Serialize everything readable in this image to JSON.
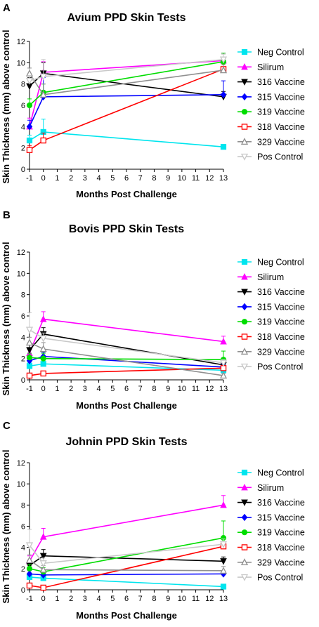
{
  "chart_data": [
    {
      "panel": "A",
      "type": "line",
      "title": "Avium PPD Skin Tests",
      "xlabel": "Months Post Challenge",
      "ylabel": "Skin Thickness (mm) above control",
      "x": [
        -1,
        0,
        13
      ],
      "xticks": [
        "-1",
        "0",
        "1",
        "2",
        "3",
        "4",
        "5",
        "6",
        "7",
        "8",
        "9",
        "10",
        "11",
        "12",
        "13"
      ],
      "yticks": [
        "0",
        "2",
        "4",
        "6",
        "8",
        "10",
        "12"
      ],
      "xlim": [
        -1,
        13
      ],
      "ylim": [
        0,
        12
      ],
      "legend_position": "right",
      "series": [
        {
          "name": "Neg Control",
          "color": "#00e5ee",
          "marker": "square",
          "values": [
            2.7,
            3.5,
            2.1
          ],
          "err": [
            0.5,
            1.2,
            0.2
          ]
        },
        {
          "name": "Silirum",
          "color": "#ff00ff",
          "marker": "triangle-up",
          "values": [
            4.0,
            9.1,
            10.2
          ],
          "err": [
            0.8,
            1.0,
            0.7
          ]
        },
        {
          "name": "316 Vaccine",
          "color": "#000000",
          "marker": "triangle-down",
          "values": [
            7.8,
            9.0,
            6.8
          ],
          "err": [
            0.8,
            1.0,
            0.5
          ]
        },
        {
          "name": "315 Vaccine",
          "color": "#0000ff",
          "marker": "diamond",
          "values": [
            4.0,
            6.8,
            7.0
          ],
          "err": [
            0.6,
            1.8,
            1.3
          ]
        },
        {
          "name": "319 Vaccine",
          "color": "#00dd00",
          "marker": "circle",
          "values": [
            6.0,
            7.2,
            10.1
          ],
          "err": [
            0.6,
            0.8,
            0.8
          ]
        },
        {
          "name": "318 Vaccine",
          "color": "#ff0000",
          "marker": "square-open",
          "values": [
            1.8,
            2.7,
            9.4
          ],
          "err": [
            0.4,
            0.7,
            0.4
          ]
        },
        {
          "name": "329 Vaccine",
          "color": "#909090",
          "marker": "triangle-open",
          "values": [
            9.0,
            7.0,
            9.3
          ],
          "err": [
            0.5,
            1.0,
            0.5
          ]
        },
        {
          "name": "Pos Control",
          "color": "#c8c8c8",
          "marker": "triangle-down-open",
          "values": [
            8.3,
            8.7,
            10.3
          ],
          "err": [
            0.5,
            1.6,
            0.5
          ]
        }
      ]
    },
    {
      "panel": "B",
      "type": "line",
      "title": "Bovis PPD Skin Tests",
      "xlabel": "Months Post Challenge",
      "ylabel": "Skin Thickness (mm) above control",
      "x": [
        -1,
        0,
        13
      ],
      "xticks": [
        "-1",
        "0",
        "1",
        "2",
        "3",
        "4",
        "5",
        "6",
        "7",
        "8",
        "9",
        "10",
        "11",
        "12",
        "13"
      ],
      "yticks": [
        "0",
        "2",
        "4",
        "6",
        "8",
        "10",
        "12"
      ],
      "xlim": [
        -1,
        13
      ],
      "ylim": [
        0,
        12
      ],
      "legend_position": "right",
      "series": [
        {
          "name": "Neg Control",
          "color": "#00e5ee",
          "marker": "square",
          "values": [
            1.3,
            1.5,
            0.9
          ],
          "err": [
            0.3,
            0.4,
            0.2
          ]
        },
        {
          "name": "Silirum",
          "color": "#ff00ff",
          "marker": "triangle-up",
          "values": [
            2.5,
            5.7,
            3.6
          ],
          "err": [
            0.5,
            0.7,
            0.5
          ]
        },
        {
          "name": "316 Vaccine",
          "color": "#000000",
          "marker": "triangle-down",
          "values": [
            2.8,
            4.3,
            1.4
          ],
          "err": [
            0.5,
            0.6,
            0.3
          ]
        },
        {
          "name": "315 Vaccine",
          "color": "#0000ff",
          "marker": "diamond",
          "values": [
            1.8,
            2.2,
            1.2
          ],
          "err": [
            0.3,
            0.4,
            0.3
          ]
        },
        {
          "name": "319 Vaccine",
          "color": "#00dd00",
          "marker": "circle",
          "values": [
            2.1,
            2.0,
            1.9
          ],
          "err": [
            0.4,
            0.5,
            0.8
          ]
        },
        {
          "name": "318 Vaccine",
          "color": "#ff0000",
          "marker": "square-open",
          "values": [
            0.4,
            0.6,
            1.1
          ],
          "err": [
            0.2,
            0.2,
            0.2
          ]
        },
        {
          "name": "329 Vaccine",
          "color": "#909090",
          "marker": "triangle-open",
          "values": [
            3.5,
            2.9,
            0.4
          ],
          "err": [
            0.5,
            0.6,
            0.2
          ]
        },
        {
          "name": "Pos Control",
          "color": "#c8c8c8",
          "marker": "triangle-down-open",
          "values": [
            4.7,
            3.9,
            1.6
          ],
          "err": [
            1.6,
            0.5,
            0.3
          ]
        }
      ]
    },
    {
      "panel": "C",
      "type": "line",
      "title": "Johnin PPD Skin Tests",
      "xlabel": "Months Post Challenge",
      "ylabel": "Skin Thickness (mm) above control",
      "x": [
        -1,
        0,
        13
      ],
      "xticks": [
        "-1",
        "0",
        "1",
        "2",
        "3",
        "4",
        "5",
        "6",
        "7",
        "8",
        "9",
        "10",
        "11",
        "12",
        "13"
      ],
      "yticks": [
        "0",
        "2",
        "4",
        "6",
        "8",
        "10",
        "12"
      ],
      "xlim": [
        -1,
        13
      ],
      "ylim": [
        0,
        12
      ],
      "legend_position": "right",
      "series": [
        {
          "name": "Neg Control",
          "color": "#00e5ee",
          "marker": "square",
          "values": [
            1.2,
            1.1,
            0.3
          ],
          "err": [
            0.3,
            0.3,
            0.1
          ]
        },
        {
          "name": "Silirum",
          "color": "#ff00ff",
          "marker": "triangle-up",
          "values": [
            2.7,
            5.0,
            8.0
          ],
          "err": [
            0.5,
            0.8,
            0.9
          ]
        },
        {
          "name": "316 Vaccine",
          "color": "#000000",
          "marker": "triangle-down",
          "values": [
            2.3,
            3.2,
            2.7
          ],
          "err": [
            0.5,
            0.6,
            0.4
          ]
        },
        {
          "name": "315 Vaccine",
          "color": "#0000ff",
          "marker": "diamond",
          "values": [
            1.5,
            1.4,
            1.5
          ],
          "err": [
            0.3,
            0.3,
            0.2
          ]
        },
        {
          "name": "319 Vaccine",
          "color": "#00dd00",
          "marker": "circle",
          "values": [
            2.0,
            1.7,
            4.9
          ],
          "err": [
            0.4,
            0.4,
            1.6
          ]
        },
        {
          "name": "318 Vaccine",
          "color": "#ff0000",
          "marker": "square-open",
          "values": [
            0.4,
            0.2,
            4.1
          ],
          "err": [
            0.2,
            0.2,
            0.4
          ]
        },
        {
          "name": "329 Vaccine",
          "color": "#909090",
          "marker": "triangle-open",
          "values": [
            2.8,
            1.9,
            1.8
          ],
          "err": [
            0.5,
            0.4,
            0.4
          ]
        },
        {
          "name": "Pos Control",
          "color": "#c8c8c8",
          "marker": "triangle-down-open",
          "values": [
            4.2,
            2.5,
            4.3
          ],
          "err": [
            1.5,
            0.5,
            0.5
          ]
        }
      ]
    }
  ]
}
